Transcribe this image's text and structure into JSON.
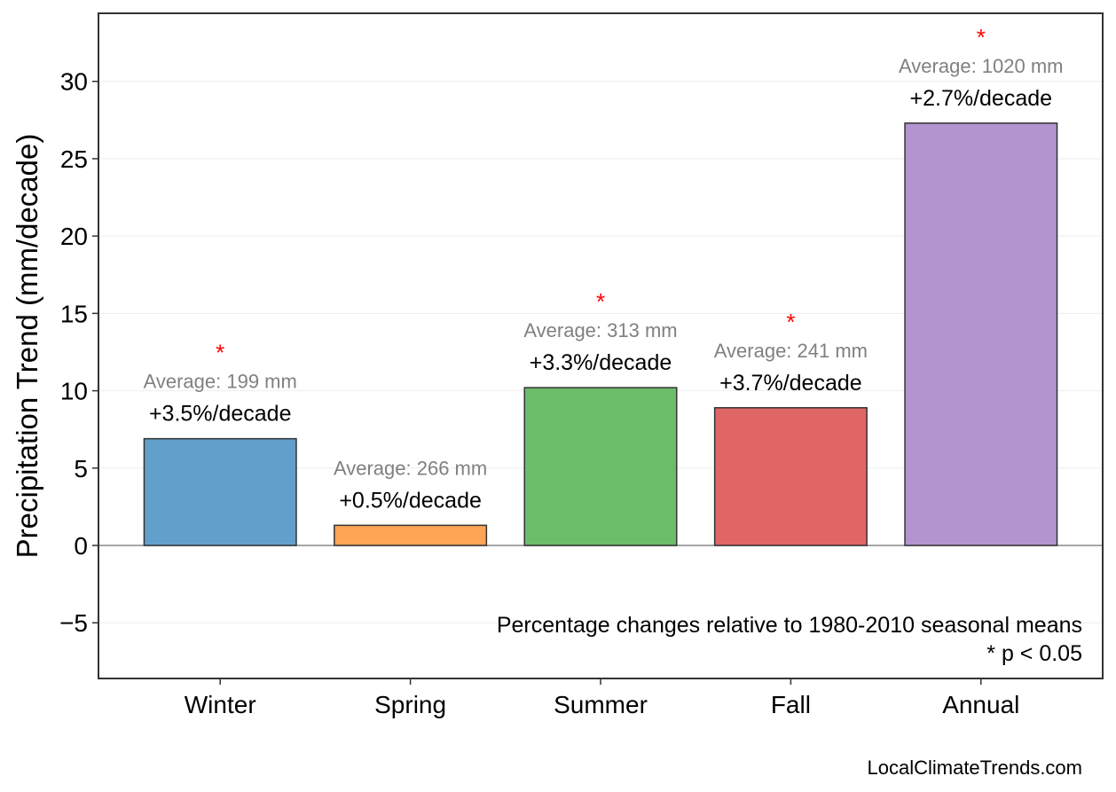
{
  "chart_data": {
    "type": "bar",
    "title": "",
    "xlabel": "",
    "ylabel": "Precipitation Trend (mm/decade)",
    "categories": [
      "Winter",
      "Spring",
      "Summer",
      "Fall",
      "Annual"
    ],
    "values": [
      6.9,
      1.3,
      10.2,
      8.9,
      27.3
    ],
    "colors": [
      "#62a0cb",
      "#fea455",
      "#6bbd6a",
      "#e06666",
      "#b394cf"
    ],
    "average_labels": [
      "Average: 199 mm",
      "Average: 266 mm",
      "Average: 313 mm",
      "Average: 241 mm",
      "Average: 1020 mm"
    ],
    "percent_labels": [
      "+3.5%/decade",
      "+0.5%/decade",
      "+3.3%/decade",
      "+3.7%/decade",
      "+2.7%/decade"
    ],
    "significant": [
      true,
      false,
      true,
      true,
      true
    ],
    "significance_marker": "*",
    "ylim": [
      -8.6,
      34.4
    ],
    "yticks": [
      -5,
      0,
      5,
      10,
      15,
      20,
      25,
      30
    ],
    "ytick_labels": [
      "−5",
      "0",
      "5",
      "10",
      "15",
      "20",
      "25",
      "30"
    ],
    "grid": true,
    "notes": [
      "Percentage changes relative to 1980-2010 seasonal means",
      "* p < 0.05"
    ],
    "watermark": "LocalClimateTrends.com"
  }
}
